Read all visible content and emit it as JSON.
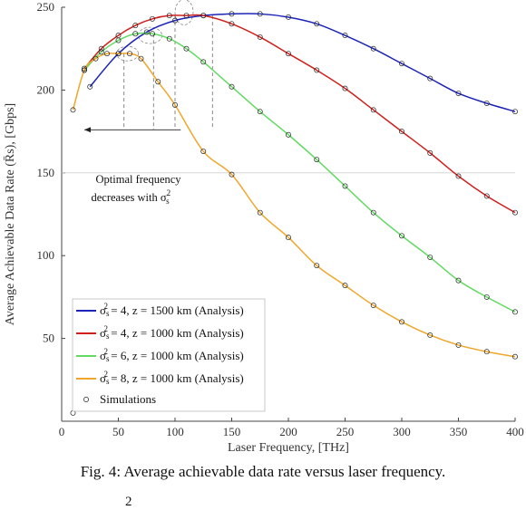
{
  "caption": "Fig. 4: Average achievable data rate versus laser frequency.",
  "footer_fragment": "2",
  "chart_data": {
    "type": "line",
    "title": "",
    "xlabel": "Laser Frequency, [THz]",
    "ylabel": "Average Achievable Data Rate (R̄s), [Gbps]",
    "xlim": [
      0,
      400
    ],
    "ylim": [
      0,
      250
    ],
    "xticks": [
      0,
      50,
      100,
      150,
      200,
      250,
      300,
      350,
      400
    ],
    "yticks": [
      50,
      100,
      150,
      200,
      250
    ],
    "grid": false,
    "legend_position": "bottom-left",
    "annotation": {
      "line1": "Optimal frequency",
      "line2": "decreases with σ",
      "sym_sub": "s",
      "sym_sup": "2"
    },
    "series": [
      {
        "sigma": "4",
        "z": "1500 km",
        "name": "σs2 = 4, z = 1500 km (Analysis)",
        "color": "#1c24b8",
        "x": [
          25,
          50,
          75,
          100,
          125,
          150,
          175,
          200,
          225,
          250,
          275,
          300,
          325,
          350,
          375,
          400
        ],
        "y": [
          202,
          222,
          235,
          242,
          245,
          246,
          246,
          244,
          240,
          233,
          225,
          216,
          207,
          198,
          192,
          187
        ]
      },
      {
        "sigma": "4",
        "z": "1000 km",
        "name": "σs2 = 4, z = 1000 km (Analysis)",
        "color": "#d0201c",
        "x": [
          20,
          35,
          50,
          65,
          80,
          95,
          110,
          125,
          150,
          175,
          200,
          225,
          250,
          275,
          300,
          325,
          350,
          375,
          400
        ],
        "y": [
          213,
          225,
          233,
          239,
          243,
          245,
          245,
          245,
          240,
          232,
          222,
          212,
          201,
          188,
          175,
          162,
          148,
          136,
          126
        ]
      },
      {
        "sigma": "6",
        "z": "1000 km",
        "name": "σs2 = 6, z = 1000 km (Analysis)",
        "color": "#62da62",
        "x": [
          20,
          35,
          50,
          65,
          80,
          95,
          110,
          125,
          150,
          175,
          200,
          225,
          250,
          275,
          300,
          325,
          350,
          375,
          400
        ],
        "y": [
          212,
          223,
          230,
          234,
          234,
          231,
          225,
          217,
          202,
          187,
          173,
          158,
          142,
          126,
          112,
          99,
          85,
          75,
          66
        ]
      },
      {
        "sigma": "8",
        "z": "1000 km",
        "name": "σs2 = 8, z = 1000 km (Analysis)",
        "color": "#efa62a",
        "x": [
          10,
          20,
          30,
          40,
          50,
          60,
          70,
          85,
          100,
          125,
          150,
          175,
          200,
          225,
          250,
          275,
          300,
          325,
          350,
          375,
          400
        ],
        "y": [
          188,
          212,
          219,
          222,
          222,
          222,
          219,
          205,
          191,
          163,
          149,
          126,
          111,
          94,
          82,
          70,
          60,
          52,
          46,
          42,
          39
        ]
      }
    ],
    "simulations_label": "Simulations"
  }
}
